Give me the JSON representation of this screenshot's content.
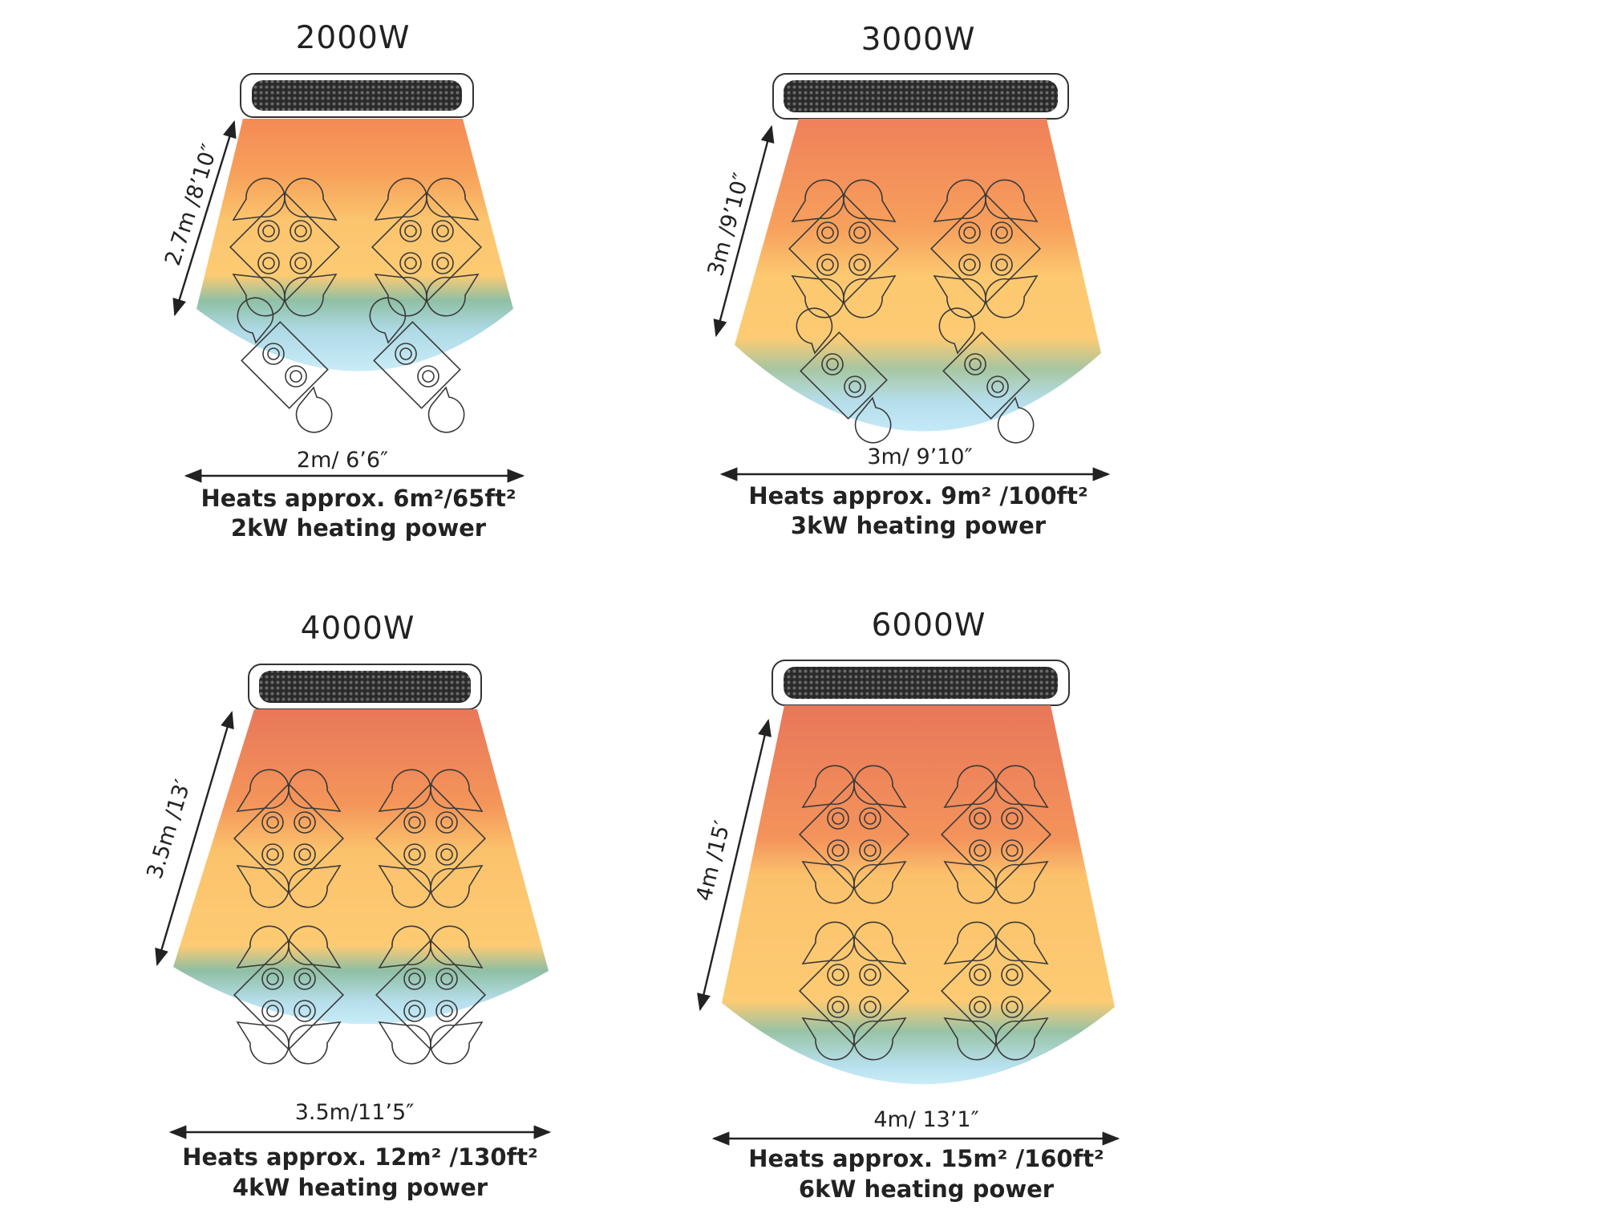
{
  "heaters": [
    {
      "wattage": "2000W",
      "reach": "2.7m /8’10″",
      "width": "2m/ 6’6″",
      "area": "Heats approx. 6m²/65ft²",
      "power": "2kW heating power"
    },
    {
      "wattage": "3000W",
      "reach": "3m /9’10″",
      "width": "3m/ 9’10″",
      "area": "Heats approx. 9m² /100ft²",
      "power": "3kW heating power"
    },
    {
      "wattage": "4000W",
      "reach": "3.5m /13′",
      "width": "3.5m/11’5″",
      "area": "Heats approx. 12m² /130ft²",
      "power": "4kW  heating power"
    },
    {
      "wattage": "6000W",
      "reach": "4m /15′",
      "width": "4m/ 13’1″",
      "area": "Heats approx. 15m²  /160ft²",
      "power": "6kW heating power"
    }
  ],
  "colors": {
    "hot": "#E8775A",
    "warm": "#F7A15A",
    "mild": "#FDCB73",
    "cool": "#8FC0A5",
    "cold": "#BDE6F7",
    "heater_grille": "#2a2a2a"
  },
  "icons": [
    "heater-icon",
    "table-with-chairs-icon"
  ]
}
